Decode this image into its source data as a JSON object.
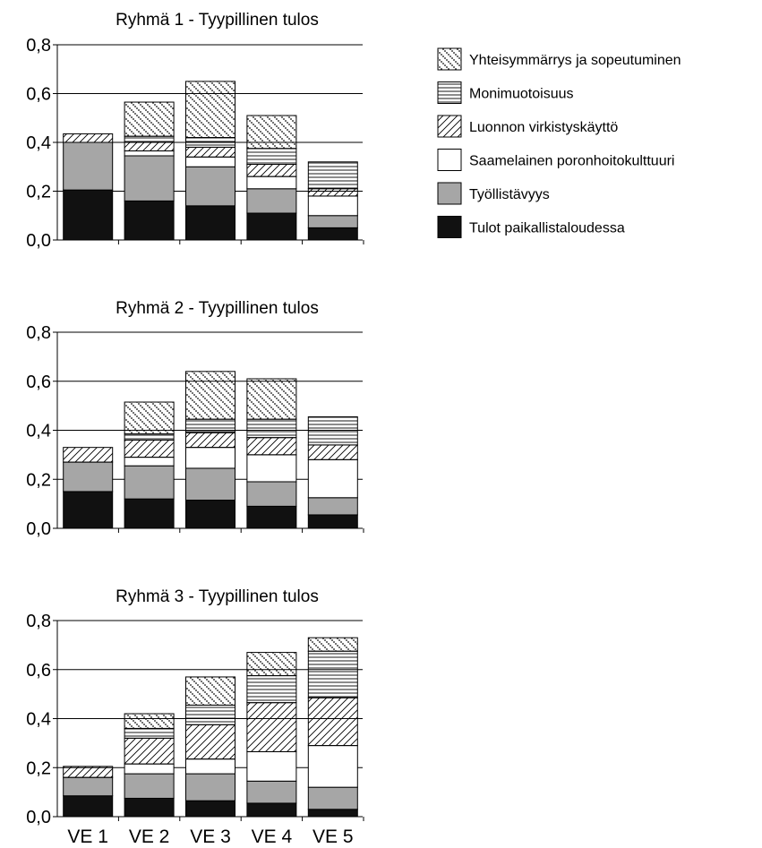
{
  "chart_data": [
    {
      "type": "bar",
      "stacked": true,
      "title": "Ryhmä 1 - Tyypillinen tulos",
      "categories": [
        "VE 1",
        "VE 2",
        "VE 3",
        "VE 4",
        "VE 5"
      ],
      "show_category_labels": false,
      "ylim": [
        0,
        0.8
      ],
      "yticks": [
        "0,0",
        "0,2",
        "0,4",
        "0,6",
        "0,8"
      ],
      "grid": true,
      "series": [
        {
          "name": "Tulot paikallistaloudessa",
          "values": [
            0.205,
            0.16,
            0.14,
            0.11,
            0.05
          ]
        },
        {
          "name": "Työllistävyys",
          "values": [
            0.195,
            0.185,
            0.16,
            0.1,
            0.05
          ]
        },
        {
          "name": "Saamelainen poronhoitokulttuuri",
          "values": [
            0.0,
            0.02,
            0.04,
            0.05,
            0.08
          ]
        },
        {
          "name": "Luonnon virkistyskäyttö",
          "values": [
            0.035,
            0.035,
            0.04,
            0.05,
            0.03
          ]
        },
        {
          "name": "Monimuotoisuus",
          "values": [
            0.0,
            0.025,
            0.04,
            0.065,
            0.11
          ]
        },
        {
          "name": "Yhteisymmärrys ja sopeutuminen",
          "values": [
            0.0,
            0.14,
            0.23,
            0.135,
            0.0
          ]
        }
      ]
    },
    {
      "type": "bar",
      "stacked": true,
      "title": "Ryhmä 2 - Tyypillinen tulos",
      "categories": [
        "VE 1",
        "VE 2",
        "VE 3",
        "VE 4",
        "VE 5"
      ],
      "show_category_labels": false,
      "ylim": [
        0,
        0.8
      ],
      "yticks": [
        "0,0",
        "0,2",
        "0,4",
        "0,6",
        "0,8"
      ],
      "grid": true,
      "series": [
        {
          "name": "Tulot paikallistaloudessa",
          "values": [
            0.15,
            0.12,
            0.115,
            0.09,
            0.055
          ]
        },
        {
          "name": "Työllistävyys",
          "values": [
            0.12,
            0.135,
            0.13,
            0.1,
            0.07
          ]
        },
        {
          "name": "Saamelainen poronhoitokulttuuri",
          "values": [
            0.0,
            0.035,
            0.085,
            0.11,
            0.155
          ]
        },
        {
          "name": "Luonnon virkistyskäyttö",
          "values": [
            0.06,
            0.07,
            0.06,
            0.07,
            0.06
          ]
        },
        {
          "name": "Monimuotoisuus",
          "values": [
            0.0,
            0.025,
            0.055,
            0.075,
            0.115
          ]
        },
        {
          "name": "Yhteisymmärrys ja sopeutuminen",
          "values": [
            0.0,
            0.13,
            0.195,
            0.165,
            0.0
          ]
        }
      ]
    },
    {
      "type": "bar",
      "stacked": true,
      "title": "Ryhmä 3 - Tyypillinen tulos",
      "categories": [
        "VE 1",
        "VE 2",
        "VE 3",
        "VE 4",
        "VE 5"
      ],
      "show_category_labels": true,
      "ylim": [
        0,
        0.8
      ],
      "yticks": [
        "0,0",
        "0,2",
        "0,4",
        "0,6",
        "0,8"
      ],
      "grid": true,
      "series": [
        {
          "name": "Tulot paikallistaloudessa",
          "values": [
            0.085,
            0.075,
            0.065,
            0.055,
            0.03
          ]
        },
        {
          "name": "Työllistävyys",
          "values": [
            0.075,
            0.1,
            0.11,
            0.09,
            0.09
          ]
        },
        {
          "name": "Saamelainen poronhoitokulttuuri",
          "values": [
            0.0,
            0.04,
            0.06,
            0.12,
            0.17
          ]
        },
        {
          "name": "Luonnon virkistyskäyttö",
          "values": [
            0.045,
            0.105,
            0.14,
            0.2,
            0.195
          ]
        },
        {
          "name": "Monimuotoisuus",
          "values": [
            0.0,
            0.04,
            0.08,
            0.11,
            0.19
          ]
        },
        {
          "name": "Yhteisymmärrys ja sopeutuminen",
          "values": [
            0.0,
            0.06,
            0.115,
            0.095,
            0.055
          ]
        }
      ]
    }
  ],
  "legend": {
    "placement": "top-right",
    "items": [
      {
        "label": "Yhteisymmärrys ja sopeutuminen",
        "fill": "dots"
      },
      {
        "label": "Monimuotoisuus",
        "fill": "horizontal-lines"
      },
      {
        "label": "Luonnon virkistyskäyttö",
        "fill": "diagonal-lines"
      },
      {
        "label": "Saamelainen poronhoitokulttuuri",
        "fill": "#ffffff"
      },
      {
        "label": "Työllistävyys",
        "fill": "#a6a6a6"
      },
      {
        "label": "Tulot paikallistaloudessa",
        "fill": "#111111"
      }
    ]
  },
  "colors": {
    "Tulot paikallistaloudessa": "#111111",
    "Työllistävyys": "#a6a6a6",
    "Saamelainen poronhoitokulttuuri": "#ffffff",
    "Luonnon virkistyskäyttö": "#ffffff",
    "Monimuotoisuus": "#ffffff",
    "Yhteisymmärrys ja sopeutuminen": "#ffffff"
  }
}
